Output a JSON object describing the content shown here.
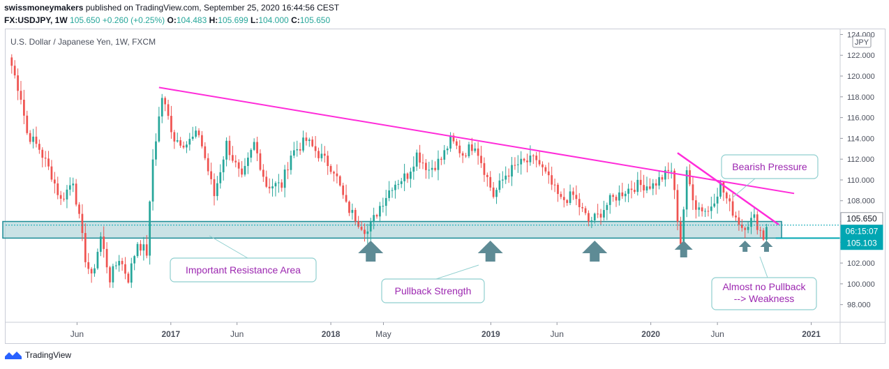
{
  "header": {
    "publisher": "swissmoneymakers",
    "published_text": "published on TradingView.com, September 25, 2020 16:44:56 CEST",
    "symbol": "FX:USDJPY, 1W",
    "last": "105.650",
    "change": "+0.260 (+0.25%)",
    "o_label": "O:",
    "o_value": "104.483",
    "h_label": "H:",
    "h_value": "105.699",
    "l_label": "L:",
    "l_value": "104.000",
    "c_label": "C:",
    "c_value": "105.650"
  },
  "chart_title": "U.S. Dollar / Japanese Yen, 1W, FXCM",
  "footer": {
    "brand": "TradingView"
  },
  "colors": {
    "up": "#26a69a",
    "down": "#ef5350",
    "wick": "#5f6368",
    "trendline": "#ff2bd9",
    "zone_fill": "#b8d8dc",
    "zone_border": "#1d8c96",
    "arrow": "#5e8b95",
    "price_badge": "#00a6b2",
    "annotation_text": "#9c27b0"
  },
  "chart_data": {
    "type": "candlestick",
    "title": "U.S. Dollar / Japanese Yen, 1W, FXCM",
    "currency": "JPY",
    "ylim": [
      96.3,
      124.5
    ],
    "y_ticks": [
      "124.000",
      "122.000",
      "120.000",
      "118.000",
      "116.000",
      "114.000",
      "112.000",
      "110.000",
      "108.000",
      "106.000",
      "104.000",
      "102.000",
      "100.000",
      "98.000"
    ],
    "x_ticks": [
      "Jun",
      "2017",
      "Jun",
      "2018",
      "May",
      "2019",
      "Jun",
      "2020",
      "Jun",
      "2021"
    ],
    "price_labels": {
      "last": "105.650",
      "countdown": "06:15:07",
      "low_marker": "105.103"
    },
    "trend_path": [
      [
        "2016-01-04",
        121.0
      ],
      [
        "2016-01-25",
        118.0
      ],
      [
        "2016-02-08",
        114.5
      ],
      [
        "2016-03-07",
        113.0
      ],
      [
        "2016-04-04",
        110.5
      ],
      [
        "2016-04-25",
        108.0
      ],
      [
        "2016-05-23",
        110.0
      ],
      [
        "2016-06-20",
        102.5
      ],
      [
        "2016-07-04",
        100.5
      ],
      [
        "2016-07-25",
        104.5
      ],
      [
        "2016-08-15",
        100.5
      ],
      [
        "2016-09-05",
        102.5
      ],
      [
        "2016-09-26",
        100.5
      ],
      [
        "2016-10-17",
        104.0
      ],
      [
        "2016-11-07",
        103.0
      ],
      [
        "2016-11-21",
        112.0
      ],
      [
        "2016-12-12",
        118.0
      ],
      [
        "2017-01-09",
        114.0
      ],
      [
        "2017-02-06",
        113.5
      ],
      [
        "2017-03-06",
        114.5
      ],
      [
        "2017-04-10",
        108.5
      ],
      [
        "2017-05-08",
        113.5
      ],
      [
        "2017-06-12",
        110.0
      ],
      [
        "2017-07-10",
        113.5
      ],
      [
        "2017-08-07",
        109.5
      ],
      [
        "2017-09-11",
        109.5
      ],
      [
        "2017-10-02",
        112.5
      ],
      [
        "2017-11-06",
        113.8
      ],
      [
        "2017-12-04",
        112.5
      ],
      [
        "2018-01-08",
        111.0
      ],
      [
        "2018-02-05",
        107.5
      ],
      [
        "2018-03-05",
        106.0
      ],
      [
        "2018-03-26",
        105.0
      ],
      [
        "2018-04-23",
        107.5
      ],
      [
        "2018-05-21",
        109.5
      ],
      [
        "2018-06-25",
        110.5
      ],
      [
        "2018-07-16",
        112.5
      ],
      [
        "2018-08-13",
        111.0
      ],
      [
        "2018-09-10",
        112.0
      ],
      [
        "2018-10-01",
        113.8
      ],
      [
        "2018-10-29",
        112.5
      ],
      [
        "2018-11-26",
        113.5
      ],
      [
        "2018-12-17",
        111.0
      ],
      [
        "2019-01-07",
        108.5
      ],
      [
        "2019-02-04",
        110.5
      ],
      [
        "2019-03-04",
        111.5
      ],
      [
        "2019-04-15",
        112.0
      ],
      [
        "2019-05-13",
        110.0
      ],
      [
        "2019-06-10",
        108.0
      ],
      [
        "2019-07-08",
        108.5
      ],
      [
        "2019-08-12",
        106.0
      ],
      [
        "2019-09-02",
        106.5
      ],
      [
        "2019-09-30",
        108.0
      ],
      [
        "2019-11-04",
        109.0
      ],
      [
        "2019-12-02",
        109.5
      ],
      [
        "2020-01-06",
        109.5
      ],
      [
        "2020-02-17",
        111.0
      ],
      [
        "2020-03-09",
        104.0
      ],
      [
        "2020-03-23",
        110.5
      ],
      [
        "2020-04-13",
        107.5
      ],
      [
        "2020-05-11",
        107.0
      ],
      [
        "2020-06-08",
        109.5
      ],
      [
        "2020-06-29",
        107.5
      ],
      [
        "2020-07-27",
        105.5
      ],
      [
        "2020-08-24",
        106.3
      ],
      [
        "2020-09-14",
        104.5
      ],
      [
        "2020-09-21",
        105.65
      ]
    ],
    "trendlines": [
      {
        "from": [
          "2016-12-05",
          118.9
        ],
        "to": [
          "2020-11-23",
          108.7
        ]
      },
      {
        "from": [
          "2020-03-02",
          112.6
        ],
        "to": [
          "2020-10-19",
          105.7
        ]
      }
    ],
    "resistance_zone": {
      "from": "2015-12-21",
      "to": "2020-10-19",
      "top": 106.0,
      "bottom": 104.4
    },
    "current_price_line": 105.65,
    "arrows": [
      {
        "x": "2018-04-02",
        "size": "large"
      },
      {
        "x": "2018-12-31",
        "size": "large"
      },
      {
        "x": "2019-08-26",
        "size": "large"
      },
      {
        "x": "2020-03-16",
        "size": "medium"
      },
      {
        "x": "2020-08-03",
        "size": "small"
      },
      {
        "x": "2020-09-21",
        "size": "small"
      }
    ],
    "annotations": [
      {
        "text": "Important Resistance Area"
      },
      {
        "text": "Pullback Strength"
      },
      {
        "text": "Bearish Pressure"
      },
      {
        "text": "Almost no Pullback",
        "text2": "--> Weakness"
      }
    ]
  }
}
